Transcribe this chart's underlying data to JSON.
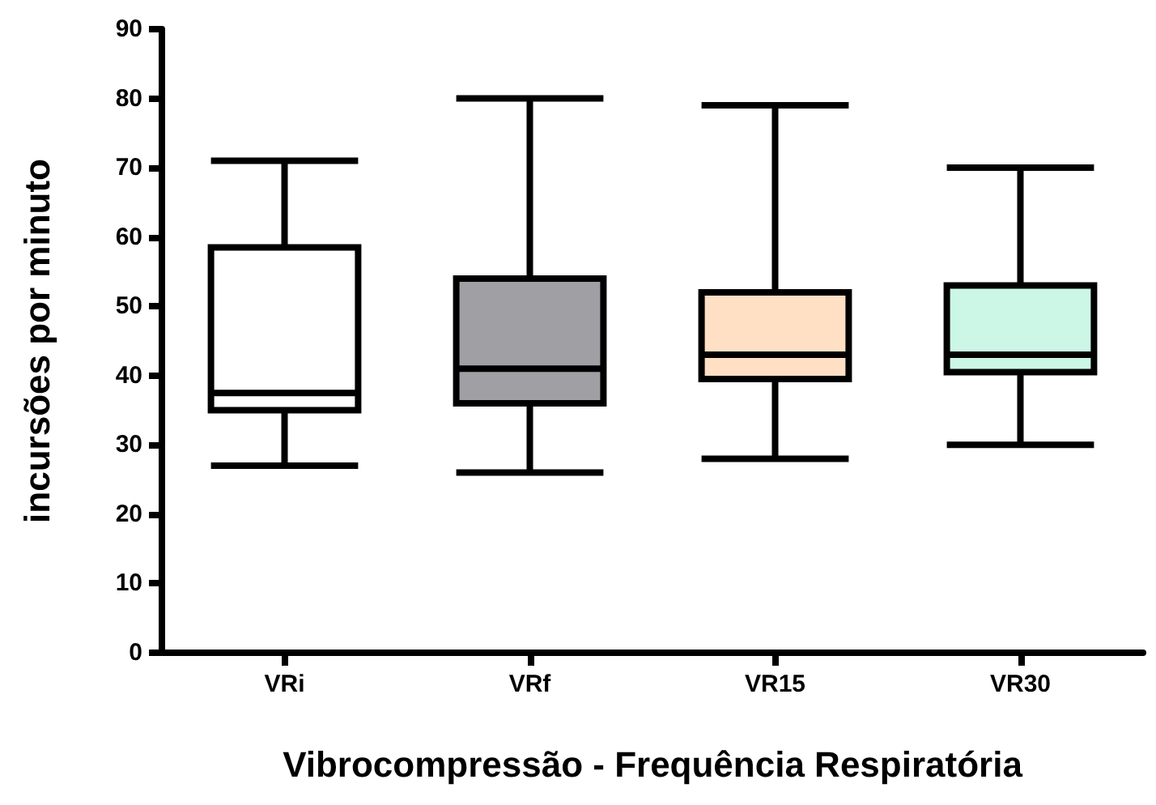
{
  "chart_data": {
    "type": "box",
    "xlabel": "Vibrocompressão - Frequência Respiratória",
    "ylabel": "incursões por minuto",
    "categories": [
      "VRi",
      "VRf",
      "VR15",
      "VR30"
    ],
    "boxes": [
      {
        "low": 27,
        "q1": 35,
        "median": 37.5,
        "q3": 58.5,
        "high": 71
      },
      {
        "low": 26,
        "q1": 36,
        "median": 41,
        "q3": 54,
        "high": 80
      },
      {
        "low": 28,
        "q1": 39.5,
        "median": 43,
        "q3": 52,
        "high": 79
      },
      {
        "low": 30,
        "q1": 40.5,
        "median": 43,
        "q3": 53,
        "high": 70
      }
    ],
    "colors": [
      "#ffffff",
      "#a09fa4",
      "#ffe0c4",
      "#ccf7e6"
    ],
    "ylim": [
      0,
      90
    ],
    "yticks": [
      0,
      10,
      20,
      30,
      40,
      50,
      60,
      70,
      80,
      90
    ],
    "grid": false
  }
}
